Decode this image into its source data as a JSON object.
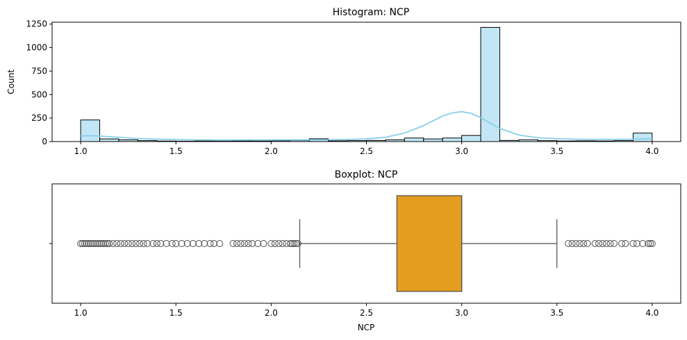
{
  "chart_data": [
    {
      "type": "histogram",
      "title": "Histogram: NCP",
      "xlabel": "",
      "ylabel": "Count",
      "xlim": [
        0.85,
        4.15
      ],
      "ylim": [
        0,
        1270
      ],
      "xticks": [
        "1.0",
        "1.5",
        "2.0",
        "2.5",
        "3.0",
        "3.5",
        "4.0"
      ],
      "yticks": [
        "0",
        "250",
        "500",
        "750",
        "1000",
        "1250"
      ],
      "bin_start": 1.0,
      "bin_width": 0.1,
      "counts": [
        230,
        28,
        18,
        10,
        5,
        4,
        6,
        5,
        7,
        6,
        9,
        12,
        30,
        8,
        10,
        12,
        18,
        38,
        28,
        38,
        65,
        1215,
        12,
        18,
        10,
        6,
        8,
        6,
        10,
        90
      ],
      "kde": {
        "x": [
          1.0,
          1.05,
          1.1,
          1.2,
          1.3,
          1.4,
          1.6,
          1.8,
          2.0,
          2.2,
          2.4,
          2.5,
          2.6,
          2.7,
          2.8,
          2.85,
          2.9,
          2.95,
          3.0,
          3.05,
          3.1,
          3.15,
          3.2,
          3.3,
          3.4,
          3.5,
          3.6,
          3.8,
          3.9,
          4.0
        ],
        "y": [
          60,
          62,
          58,
          45,
          32,
          24,
          18,
          16,
          17,
          18,
          22,
          28,
          45,
          90,
          170,
          220,
          272,
          305,
          318,
          300,
          255,
          195,
          140,
          70,
          40,
          30,
          25,
          22,
          25,
          30
        ]
      },
      "colors": {
        "bar": "#c2e6f5",
        "edge": "#000000",
        "kde": "#87ceeb"
      },
      "grid": false
    },
    {
      "type": "boxplot",
      "title": "Boxplot: NCP",
      "xlabel": "NCP",
      "xlim": [
        0.85,
        4.15
      ],
      "xticks": [
        "1.0",
        "1.5",
        "2.0",
        "2.5",
        "3.0",
        "3.5",
        "4.0"
      ],
      "q1": 2.66,
      "median": 3.0,
      "q3": 3.0,
      "whisker_low": 2.15,
      "whisker_high": 3.5,
      "outliers": [
        1.0,
        1.01,
        1.02,
        1.03,
        1.04,
        1.05,
        1.06,
        1.07,
        1.08,
        1.09,
        1.1,
        1.11,
        1.12,
        1.13,
        1.14,
        1.15,
        1.17,
        1.19,
        1.21,
        1.23,
        1.25,
        1.27,
        1.29,
        1.31,
        1.33,
        1.35,
        1.38,
        1.4,
        1.42,
        1.45,
        1.48,
        1.5,
        1.53,
        1.56,
        1.59,
        1.62,
        1.65,
        1.68,
        1.7,
        1.73,
        1.8,
        1.82,
        1.84,
        1.86,
        1.88,
        1.9,
        1.93,
        1.96,
        2.0,
        2.02,
        2.04,
        2.06,
        2.08,
        2.1,
        2.11,
        2.12,
        2.13,
        2.14,
        3.56,
        3.58,
        3.6,
        3.62,
        3.64,
        3.66,
        3.7,
        3.72,
        3.74,
        3.76,
        3.78,
        3.8,
        3.84,
        3.86,
        3.9,
        3.92,
        3.95,
        3.98,
        3.99,
        4.0
      ],
      "colors": {
        "box": "#e39d20",
        "line": "#4d4d4d"
      }
    }
  ]
}
